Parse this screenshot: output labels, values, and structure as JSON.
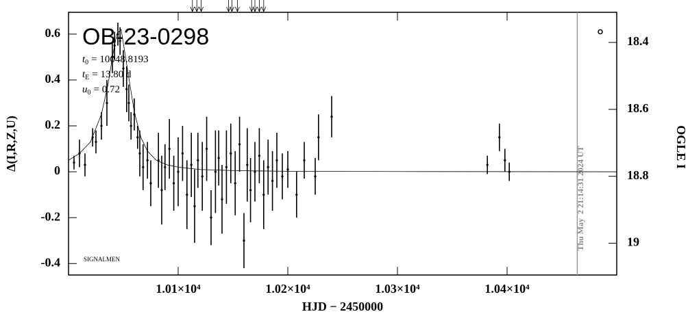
{
  "chart_data": {
    "type": "scatter",
    "title": "OB-23-0298",
    "params": [
      {
        "symbol": "t",
        "sub": "0",
        "text": "= 10048.8193"
      },
      {
        "symbol": "t",
        "sub": "E",
        "text": "= 13.80 d"
      },
      {
        "symbol": "u",
        "sub": "0",
        "text": "= 0.72"
      }
    ],
    "note": "SIGNALMEN",
    "timestamp": "Thu May  2 21:14:31 2024 UT",
    "x_label": "HJD − 2450000",
    "y_label": "Δ(I,R,Z,U)",
    "y2_label": "OGLE I",
    "xlim": [
      10000,
      10500
    ],
    "ylim": [
      -0.45,
      0.695
    ],
    "y2lim": [
      19.095,
      18.31
    ],
    "xticks": [
      {
        "value": 10100,
        "label": "1.01×10⁴"
      },
      {
        "value": 10200,
        "label": "1.02×10⁴"
      },
      {
        "value": 10300,
        "label": "1.03×10⁴"
      },
      {
        "value": 10400,
        "label": "1.04×10⁴"
      }
    ],
    "yticks": [
      -0.4,
      -0.2,
      0,
      0.2,
      0.4,
      0.6
    ],
    "y2ticks": [
      18.4,
      18.6,
      18.8,
      19
    ],
    "color": "#000000",
    "time_marker_x": 10464,
    "arrows_x": [
      10113,
      10117,
      10121,
      10146,
      10149,
      10154,
      10167,
      10170,
      10174,
      10178
    ],
    "extra_point": {
      "x": 10485,
      "value": 0.61
    },
    "model": {
      "x": [
        10000,
        10010,
        10020,
        10030,
        10036,
        10040,
        10044,
        10048,
        10052,
        10056,
        10060,
        10066,
        10072,
        10080,
        10090,
        10100,
        10120,
        10150,
        10200,
        10300,
        10500
      ],
      "values": [
        0.05,
        0.08,
        0.13,
        0.25,
        0.38,
        0.5,
        0.6,
        0.62,
        0.5,
        0.38,
        0.26,
        0.15,
        0.09,
        0.05,
        0.03,
        0.02,
        0.01,
        0.005,
        0.002,
        0.001,
        0
      ]
    },
    "series": [
      {
        "x": [
          10005,
          10010,
          10015,
          10022,
          10025,
          10030,
          10035,
          10040,
          10042,
          10045,
          10047,
          10050,
          10053,
          10055,
          10057,
          10060,
          10063,
          10065,
          10068,
          10072,
          10075,
          10082,
          10085,
          10088,
          10092,
          10096,
          10100,
          10104,
          10108,
          10112,
          10115,
          10118,
          10122,
          10126,
          10130,
          10134,
          10137,
          10140,
          10144,
          10148,
          10152,
          10156,
          10160,
          10163,
          10166,
          10170,
          10174,
          10178,
          10182,
          10186,
          10190,
          10195,
          10200,
          10208,
          10215,
          10225,
          10228,
          10240,
          10382,
          10393,
          10398,
          10402
        ],
        "values": [
          0.04,
          0.08,
          0.03,
          0.15,
          0.13,
          0.2,
          0.3,
          0.5,
          0.55,
          0.6,
          0.57,
          0.45,
          0.36,
          0.3,
          0.2,
          0.25,
          0.15,
          0.08,
          0.02,
          0.05,
          -0.05,
          0.05,
          -0.08,
          0.02,
          0.1,
          -0.05,
          0.0,
          0.08,
          -0.1,
          0.03,
          -0.15,
          0.05,
          -0.02,
          0.1,
          -0.2,
          0.0,
          0.06,
          -0.12,
          0.02,
          0.08,
          -0.05,
          0.12,
          -0.3,
          0.03,
          -0.08,
          0.0,
          0.07,
          -0.1,
          0.02,
          -0.04,
          0.05,
          -0.02,
          0.01,
          -0.1,
          0.05,
          -0.02,
          0.15,
          0.24,
          0.03,
          0.15,
          0.05,
          0.0
        ],
        "errors": [
          0.03,
          0.06,
          0.05,
          0.04,
          0.05,
          0.06,
          0.1,
          0.07,
          0.06,
          0.05,
          0.06,
          0.08,
          0.1,
          0.08,
          0.06,
          0.07,
          0.05,
          0.1,
          0.1,
          0.08,
          0.1,
          0.12,
          0.15,
          0.1,
          0.13,
          0.12,
          0.15,
          0.12,
          0.15,
          0.14,
          0.16,
          0.12,
          0.15,
          0.14,
          0.12,
          0.18,
          0.12,
          0.15,
          0.16,
          0.13,
          0.14,
          0.12,
          0.12,
          0.16,
          0.14,
          0.13,
          0.12,
          0.15,
          0.12,
          0.13,
          0.12,
          0.1,
          0.08,
          0.1,
          0.08,
          0.08,
          0.1,
          0.09,
          0.04,
          0.06,
          0.05,
          0.04
        ]
      }
    ]
  }
}
